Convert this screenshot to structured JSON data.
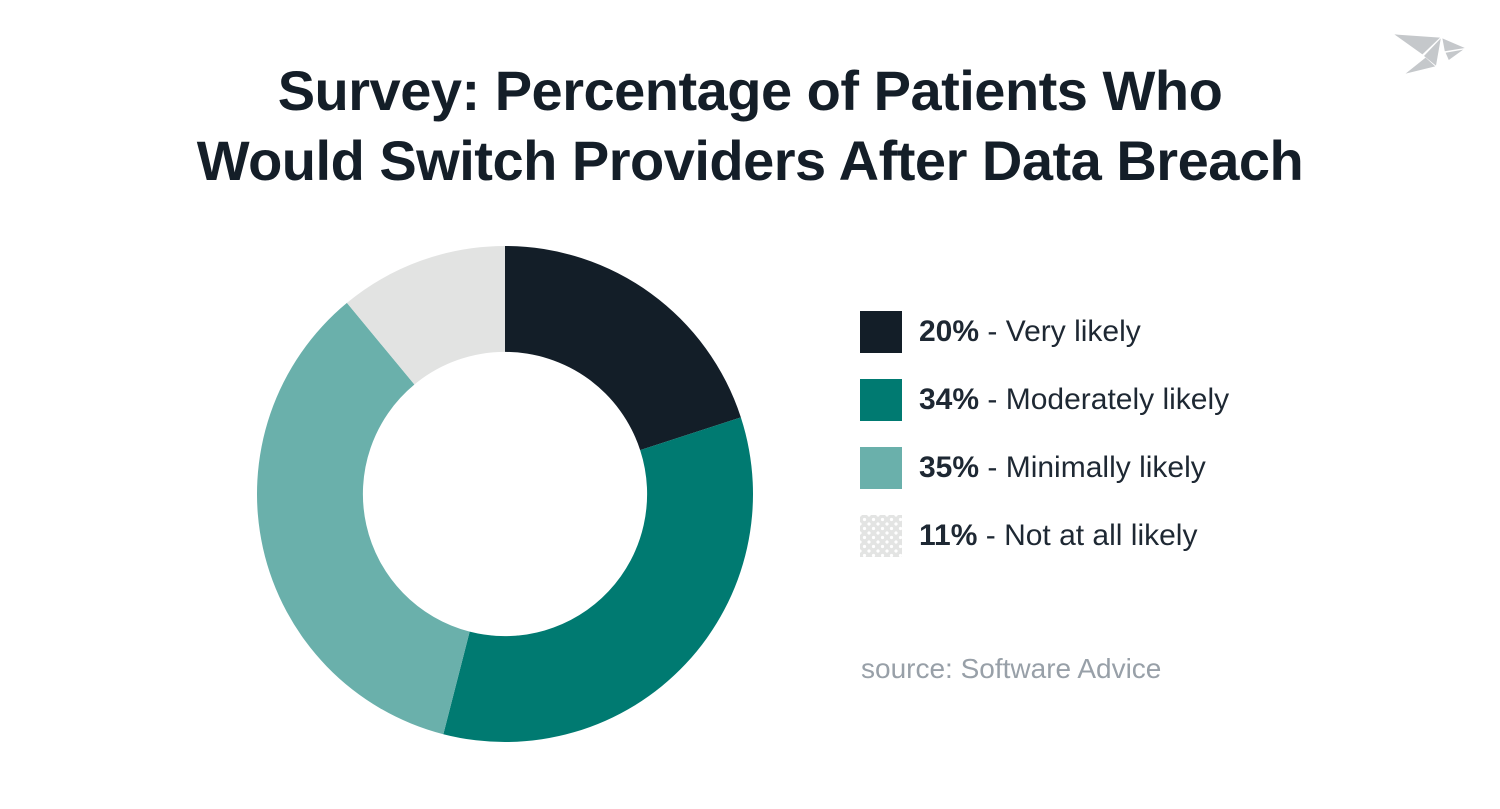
{
  "title": {
    "line1": "Survey: Percentage of Patients Who",
    "line2": "Would Switch Providers After Data Breach",
    "color": "#141e28"
  },
  "logo": {
    "name": "origami-bird-logo",
    "color": "#c5c8cb"
  },
  "legend": {
    "separator": " - ",
    "items": [
      {
        "percent": "20%",
        "label": "Very likely",
        "color": "#131e28",
        "dotted": false
      },
      {
        "percent": "34%",
        "label": "Moderately likely",
        "color": "#007a71",
        "dotted": false
      },
      {
        "percent": "35%",
        "label": "Minimally likely",
        "color": "#6ab0ab",
        "dotted": false
      },
      {
        "percent": "11%",
        "label": "Not at all likely",
        "color": "#e3e4e3",
        "dotted": true
      }
    ]
  },
  "source": {
    "text": "source: Software Advice",
    "color": "#98a0a8"
  },
  "chart_data": {
    "type": "pie",
    "subtype": "donut",
    "title": "Survey: Percentage of Patients Who Would Switch Providers After Data Breach",
    "categories": [
      "Very likely",
      "Moderately likely",
      "Minimally likely",
      "Not at all likely"
    ],
    "values": [
      20,
      34,
      35,
      11
    ],
    "unit": "percent",
    "colors": [
      "#131e28",
      "#007a71",
      "#6ab0ab",
      "#e2e3e2"
    ],
    "start_angle_deg": 0,
    "direction": "clockwise",
    "inner_radius_ratio": 0.573,
    "legend_position": "right",
    "source": "source: Software Advice"
  }
}
